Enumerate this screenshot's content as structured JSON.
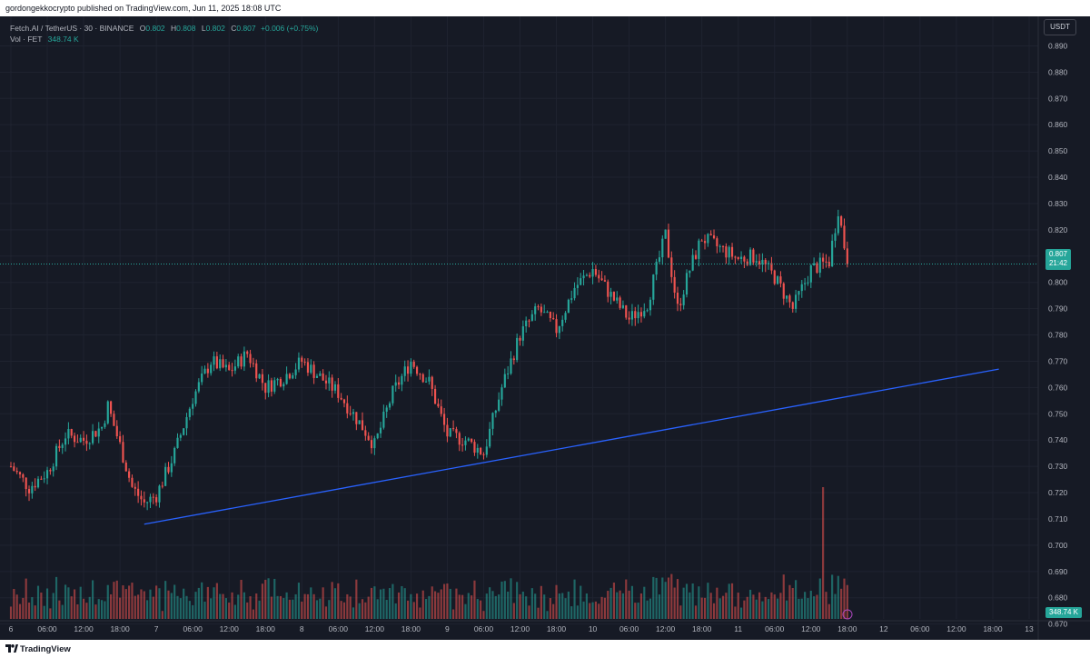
{
  "publisher_line": "gordongekkocrypto published on TradingView.com, Jun 11, 2025 18:08 UTC",
  "legend": {
    "symbol": "Fetch.AI / TetherUS · 30 · BINANCE",
    "o_label": "O",
    "o_value": "0.802",
    "h_label": "H",
    "h_value": "0.808",
    "l_label": "L",
    "l_value": "0.802",
    "c_label": "C",
    "c_value": "0.807",
    "change": "+0.006 (+0.75%)",
    "vol_label": "Vol · FET",
    "vol_value": "348.74 K"
  },
  "currency": "USDT",
  "last_price_tag": {
    "price": "0.807",
    "countdown": "21:42"
  },
  "volume_tag": "348.74 K",
  "footer_brand": "TradingView",
  "colors": {
    "up": "#26a69a",
    "down": "#ef5350",
    "trendline": "#2962ff",
    "background": "#161a25",
    "grid": "#1f2330",
    "text": "#b2b5be"
  },
  "chart_data": {
    "type": "candlestick",
    "y_ticks": [
      "0.890",
      "0.880",
      "0.870",
      "0.860",
      "0.850",
      "0.840",
      "0.830",
      "0.820",
      "0.810",
      "0.800",
      "0.790",
      "0.780",
      "0.770",
      "0.760",
      "0.750",
      "0.740",
      "0.730",
      "0.720",
      "0.710",
      "0.700",
      "0.690",
      "0.680",
      "0.670"
    ],
    "y_range": [
      0.664,
      0.895
    ],
    "x_ticks": [
      "6",
      "06:00",
      "12:00",
      "18:00",
      "7",
      "06:00",
      "12:00",
      "18:00",
      "8",
      "06:00",
      "12:00",
      "18:00",
      "9",
      "06:00",
      "12:00",
      "18:00",
      "10",
      "06:00",
      "12:00",
      "18:00",
      "11",
      "06:00",
      "12:00",
      "18:00",
      "12",
      "06:00",
      "12:00",
      "18:00",
      "13"
    ],
    "x_range": [
      "Jun 6 00:00",
      "Jun 13 00:00"
    ],
    "bar_interval_minutes": 30,
    "last_close": 0.807,
    "path": [
      {
        "t": "Jun 6 00:00",
        "price": 0.73
      },
      {
        "t": "Jun 6 03:00",
        "price": 0.722
      },
      {
        "t": "Jun 6 06:00",
        "price": 0.728
      },
      {
        "t": "Jun 6 09:00",
        "price": 0.742
      },
      {
        "t": "Jun 6 12:00",
        "price": 0.74
      },
      {
        "t": "Jun 6 15:00",
        "price": 0.745
      },
      {
        "t": "Jun 6 16:00",
        "price": 0.753
      },
      {
        "t": "Jun 6 18:00",
        "price": 0.738
      },
      {
        "t": "Jun 6 20:00",
        "price": 0.722
      },
      {
        "t": "Jun 6 22:00",
        "price": 0.716
      },
      {
        "t": "Jun 7 00:00",
        "price": 0.719
      },
      {
        "t": "Jun 7 03:00",
        "price": 0.735
      },
      {
        "t": "Jun 7 06:00",
        "price": 0.756
      },
      {
        "t": "Jun 7 09:00",
        "price": 0.77
      },
      {
        "t": "Jun 7 12:00",
        "price": 0.766
      },
      {
        "t": "Jun 7 15:00",
        "price": 0.773
      },
      {
        "t": "Jun 7 18:00",
        "price": 0.76
      },
      {
        "t": "Jun 7 21:00",
        "price": 0.764
      },
      {
        "t": "Jun 8 00:00",
        "price": 0.77
      },
      {
        "t": "Jun 8 03:00",
        "price": 0.764
      },
      {
        "t": "Jun 8 06:00",
        "price": 0.758
      },
      {
        "t": "Jun 8 10:00",
        "price": 0.745
      },
      {
        "t": "Jun 8 12:00",
        "price": 0.738
      },
      {
        "t": "Jun 8 15:00",
        "price": 0.758
      },
      {
        "t": "Jun 8 18:00",
        "price": 0.77
      },
      {
        "t": "Jun 8 21:00",
        "price": 0.762
      },
      {
        "t": "Jun 9 00:00",
        "price": 0.742
      },
      {
        "t": "Jun 9 03:00",
        "price": 0.74
      },
      {
        "t": "Jun 9 06:00",
        "price": 0.735
      },
      {
        "t": "Jun 9 09:00",
        "price": 0.76
      },
      {
        "t": "Jun 9 12:00",
        "price": 0.78
      },
      {
        "t": "Jun 9 15:00",
        "price": 0.79
      },
      {
        "t": "Jun 9 18:00",
        "price": 0.782
      },
      {
        "t": "Jun 9 21:00",
        "price": 0.798
      },
      {
        "t": "Jun 10 00:00",
        "price": 0.805
      },
      {
        "t": "Jun 10 03:00",
        "price": 0.795
      },
      {
        "t": "Jun 10 06:00",
        "price": 0.786
      },
      {
        "t": "Jun 10 09:00",
        "price": 0.792
      },
      {
        "t": "Jun 10 12:00",
        "price": 0.818
      },
      {
        "t": "Jun 10 14:00",
        "price": 0.79
      },
      {
        "t": "Jun 10 16:00",
        "price": 0.805
      },
      {
        "t": "Jun 10 18:00",
        "price": 0.817
      },
      {
        "t": "Jun 10 21:00",
        "price": 0.813
      },
      {
        "t": "Jun 11 00:00",
        "price": 0.809
      },
      {
        "t": "Jun 11 03:00",
        "price": 0.81
      },
      {
        "t": "Jun 11 06:00",
        "price": 0.802
      },
      {
        "t": "Jun 11 09:00",
        "price": 0.79
      },
      {
        "t": "Jun 11 12:00",
        "price": 0.805
      },
      {
        "t": "Jun 11 15:00",
        "price": 0.808
      },
      {
        "t": "Jun 11 16:30",
        "price": 0.828
      },
      {
        "t": "Jun 11 18:00",
        "price": 0.807
      }
    ],
    "trendline": {
      "start": {
        "t": "Jun 6 22:00",
        "price": 0.708
      },
      "end": {
        "t": "Jun 12 19:00",
        "price": 0.767
      }
    },
    "volume_spike": {
      "t": "Jun 11 14:00",
      "value_relative": "highest"
    }
  }
}
